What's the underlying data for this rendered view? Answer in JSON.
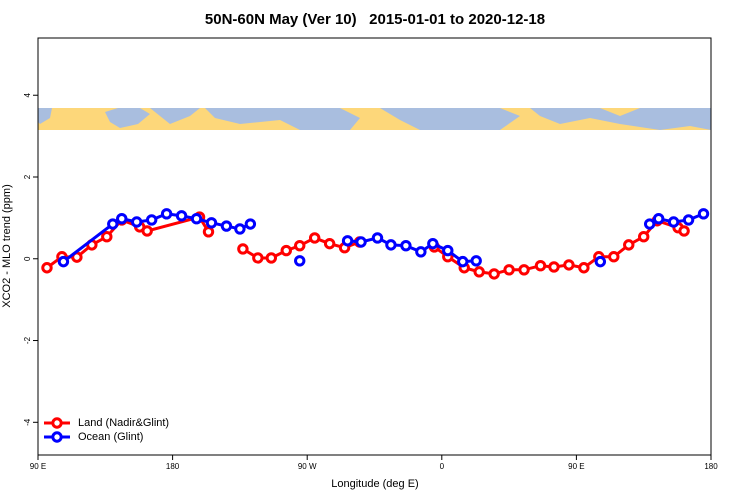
{
  "chart_data": {
    "type": "line",
    "title": "50N-60N May (Ver 10)   2015-01-01 to 2020-12-18",
    "x_label": "Longitude (deg E)",
    "y_label": "XCO2 - MLO trend (ppm)",
    "xlim": [
      90,
      540
    ],
    "ylim": [
      -4.8,
      5.4
    ],
    "xticks": [
      {
        "value": 90,
        "label": "90 E"
      },
      {
        "value": 180,
        "label": "180"
      },
      {
        "value": 270,
        "label": "90 W"
      },
      {
        "value": 360,
        "label": "0"
      },
      {
        "value": 450,
        "label": "90 E"
      },
      {
        "value": 540,
        "label": "180"
      }
    ],
    "yticks": [
      -4,
      -2,
      0,
      2,
      4
    ],
    "legend": "bottom-left",
    "series": [
      {
        "name": "Land (Nadir&Glint)",
        "color": "#ff0000",
        "x": [
          96,
          106,
          116,
          126,
          136,
          146,
          158,
          163,
          198,
          204,
          null,
          227,
          237,
          246,
          256,
          265,
          275,
          285,
          295,
          305,
          null,
          355,
          364,
          375,
          385,
          395,
          405,
          415,
          426,
          435,
          445,
          455,
          465,
          475,
          485,
          495,
          504,
          518,
          522
        ],
        "values": [
          -0.22,
          0.05,
          0.04,
          0.34,
          0.54,
          0.95,
          0.78,
          0.68,
          1.02,
          0.66,
          null,
          0.24,
          0.02,
          0.02,
          0.2,
          0.32,
          0.51,
          0.37,
          0.27,
          0.41,
          null,
          0.29,
          0.05,
          -0.22,
          -0.32,
          -0.37,
          -0.27,
          -0.27,
          -0.17,
          -0.2,
          -0.15,
          -0.22,
          0.05,
          0.05,
          0.34,
          0.54,
          0.93,
          0.76,
          0.68
        ]
      },
      {
        "name": "Ocean (Glint)",
        "color": "#0000ff",
        "x": [
          107,
          140,
          146,
          156,
          166,
          176,
          186,
          196,
          206,
          216,
          225,
          232,
          null,
          265,
          null,
          297,
          306,
          317,
          326,
          336,
          346,
          354,
          364,
          374,
          383,
          null,
          466,
          null,
          499,
          505,
          515,
          525,
          535
        ],
        "values": [
          -0.07,
          0.85,
          0.98,
          0.9,
          0.95,
          1.1,
          1.05,
          0.98,
          0.88,
          0.8,
          0.73,
          0.85,
          null,
          -0.05,
          null,
          0.44,
          0.41,
          0.51,
          0.34,
          0.32,
          0.17,
          0.37,
          0.2,
          -0.07,
          -0.05,
          null,
          -0.07,
          null,
          0.85,
          0.98,
          0.9,
          0.95,
          1.1
        ]
      }
    ]
  }
}
